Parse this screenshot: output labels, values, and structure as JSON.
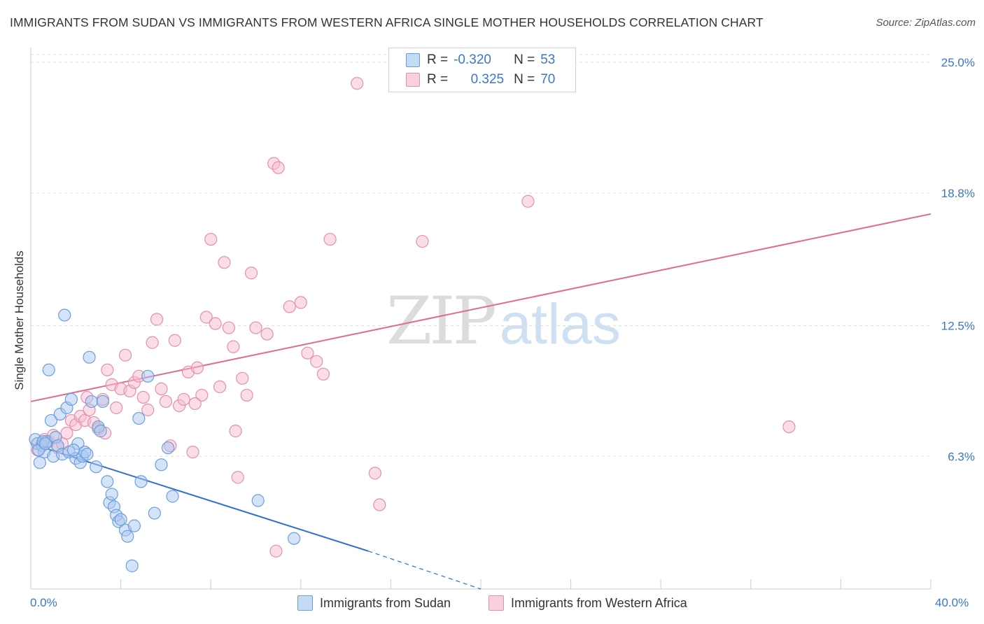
{
  "title": "IMMIGRANTS FROM SUDAN VS IMMIGRANTS FROM WESTERN AFRICA SINGLE MOTHER HOUSEHOLDS CORRELATION CHART",
  "source": "Source: ZipAtlas.com",
  "watermark": {
    "zip": "ZIP",
    "atlas": "atlas"
  },
  "legend": {
    "r_label": "R =",
    "n_label": "N =",
    "series": [
      {
        "name": "Immigrants from Sudan",
        "r": "-0.320",
        "n": "53"
      },
      {
        "name": "Immigrants from Western Africa",
        "r": "0.325",
        "n": "70"
      }
    ]
  },
  "colors": {
    "sudan_fill": "#a9c8ef",
    "sudan_stroke": "#6c9fdc",
    "sudan_line": "#2f6fcf",
    "wafrica_fill": "#f6bcd0",
    "wafrica_stroke": "#e58fad",
    "wafrica_line": "#e06a92",
    "tick_text": "#3a78c9",
    "grid": "#dddddd"
  },
  "chart_data": {
    "type": "scatter",
    "title": "IMMIGRANTS FROM SUDAN VS IMMIGRANTS FROM WESTERN AFRICA SINGLE MOTHER HOUSEHOLDS CORRELATION CHART",
    "xlabel": "",
    "ylabel": "Single Mother Households",
    "xlim": [
      0,
      40
    ],
    "ylim": [
      0,
      25.5
    ],
    "x_tick_labels": [
      "0.0%",
      "40.0%"
    ],
    "y_ticks": [
      6.3,
      12.5,
      18.8,
      25.0
    ],
    "y_tick_labels": [
      "6.3%",
      "12.5%",
      "18.8%",
      "25.0%"
    ],
    "grid": true,
    "series": [
      {
        "name": "Immigrants from Sudan",
        "points": [
          [
            0.2,
            7.1
          ],
          [
            0.3,
            6.9
          ],
          [
            0.4,
            6.0
          ],
          [
            0.5,
            6.8
          ],
          [
            0.6,
            6.5
          ],
          [
            0.7,
            7.0
          ],
          [
            0.8,
            10.4
          ],
          [
            0.9,
            8.0
          ],
          [
            1.0,
            6.3
          ],
          [
            1.1,
            7.2
          ],
          [
            1.2,
            6.8
          ],
          [
            1.3,
            8.3
          ],
          [
            1.4,
            6.4
          ],
          [
            1.5,
            13.0
          ],
          [
            1.6,
            8.6
          ],
          [
            1.7,
            6.5
          ],
          [
            1.8,
            9.0
          ],
          [
            2.0,
            6.2
          ],
          [
            2.1,
            6.9
          ],
          [
            2.2,
            6.0
          ],
          [
            2.3,
            6.3
          ],
          [
            2.4,
            6.5
          ],
          [
            2.5,
            6.4
          ],
          [
            2.6,
            11.0
          ],
          [
            2.7,
            8.9
          ],
          [
            2.9,
            5.8
          ],
          [
            3.0,
            7.7
          ],
          [
            3.1,
            7.5
          ],
          [
            3.2,
            8.9
          ],
          [
            3.4,
            5.1
          ],
          [
            3.5,
            4.1
          ],
          [
            3.6,
            4.5
          ],
          [
            3.7,
            3.9
          ],
          [
            3.8,
            3.5
          ],
          [
            3.9,
            3.2
          ],
          [
            4.0,
            3.3
          ],
          [
            4.2,
            2.8
          ],
          [
            4.3,
            2.5
          ],
          [
            4.5,
            1.1
          ],
          [
            4.6,
            3.0
          ],
          [
            4.8,
            8.1
          ],
          [
            4.9,
            5.1
          ],
          [
            5.2,
            10.1
          ],
          [
            5.5,
            3.6
          ],
          [
            5.8,
            5.9
          ],
          [
            6.1,
            6.7
          ],
          [
            6.3,
            4.4
          ],
          [
            10.1,
            4.2
          ],
          [
            11.7,
            2.4
          ],
          [
            0.35,
            6.6
          ],
          [
            0.55,
            7.0
          ],
          [
            0.65,
            6.9
          ],
          [
            1.9,
            6.6
          ]
        ]
      },
      {
        "name": "Immigrants from Western Africa",
        "points": [
          [
            0.3,
            6.6
          ],
          [
            0.5,
            6.9
          ],
          [
            0.6,
            7.1
          ],
          [
            0.8,
            7.0
          ],
          [
            1.0,
            7.3
          ],
          [
            1.2,
            6.7
          ],
          [
            1.4,
            6.9
          ],
          [
            1.6,
            7.4
          ],
          [
            1.8,
            8.0
          ],
          [
            2.0,
            7.8
          ],
          [
            2.2,
            8.2
          ],
          [
            2.4,
            8.0
          ],
          [
            2.6,
            8.5
          ],
          [
            2.8,
            7.9
          ],
          [
            3.0,
            7.6
          ],
          [
            3.2,
            9.0
          ],
          [
            3.4,
            10.4
          ],
          [
            3.6,
            9.7
          ],
          [
            3.8,
            8.6
          ],
          [
            4.0,
            9.5
          ],
          [
            4.2,
            11.1
          ],
          [
            4.4,
            9.4
          ],
          [
            4.6,
            9.8
          ],
          [
            4.8,
            10.1
          ],
          [
            5.0,
            9.1
          ],
          [
            5.2,
            8.5
          ],
          [
            5.4,
            11.7
          ],
          [
            5.6,
            12.8
          ],
          [
            5.8,
            9.5
          ],
          [
            6.0,
            8.9
          ],
          [
            6.2,
            6.8
          ],
          [
            6.4,
            11.8
          ],
          [
            6.6,
            8.7
          ],
          [
            6.8,
            9.0
          ],
          [
            7.0,
            10.3
          ],
          [
            7.2,
            6.5
          ],
          [
            7.4,
            10.5
          ],
          [
            7.6,
            9.2
          ],
          [
            7.8,
            12.9
          ],
          [
            8.0,
            16.6
          ],
          [
            8.2,
            12.6
          ],
          [
            8.4,
            9.6
          ],
          [
            8.6,
            15.5
          ],
          [
            8.8,
            12.4
          ],
          [
            9.0,
            11.5
          ],
          [
            9.2,
            5.3
          ],
          [
            9.4,
            10.0
          ],
          [
            9.6,
            9.2
          ],
          [
            9.8,
            15.0
          ],
          [
            10.0,
            12.4
          ],
          [
            10.5,
            12.1
          ],
          [
            10.8,
            20.2
          ],
          [
            11.0,
            20.0
          ],
          [
            11.5,
            13.4
          ],
          [
            12.0,
            13.6
          ],
          [
            12.3,
            11.2
          ],
          [
            12.7,
            10.8
          ],
          [
            13.0,
            10.2
          ],
          [
            13.3,
            16.6
          ],
          [
            14.5,
            24.0
          ],
          [
            15.3,
            5.5
          ],
          [
            17.4,
            16.5
          ],
          [
            22.1,
            18.4
          ],
          [
            33.7,
            7.7
          ],
          [
            15.5,
            4.0
          ],
          [
            10.9,
            1.8
          ],
          [
            9.1,
            7.5
          ],
          [
            7.3,
            8.8
          ],
          [
            3.3,
            7.4
          ],
          [
            2.5,
            9.1
          ]
        ]
      }
    ],
    "trend_lines": [
      {
        "name": "Immigrants from Sudan",
        "x": [
          0,
          15
        ],
        "y": [
          6.9,
          1.8
        ],
        "dashed_extension": {
          "x": [
            15,
            20
          ],
          "y": [
            1.8,
            0.0
          ]
        }
      },
      {
        "name": "Immigrants from Western Africa",
        "x": [
          0,
          40
        ],
        "y": [
          8.9,
          17.8
        ]
      }
    ]
  }
}
